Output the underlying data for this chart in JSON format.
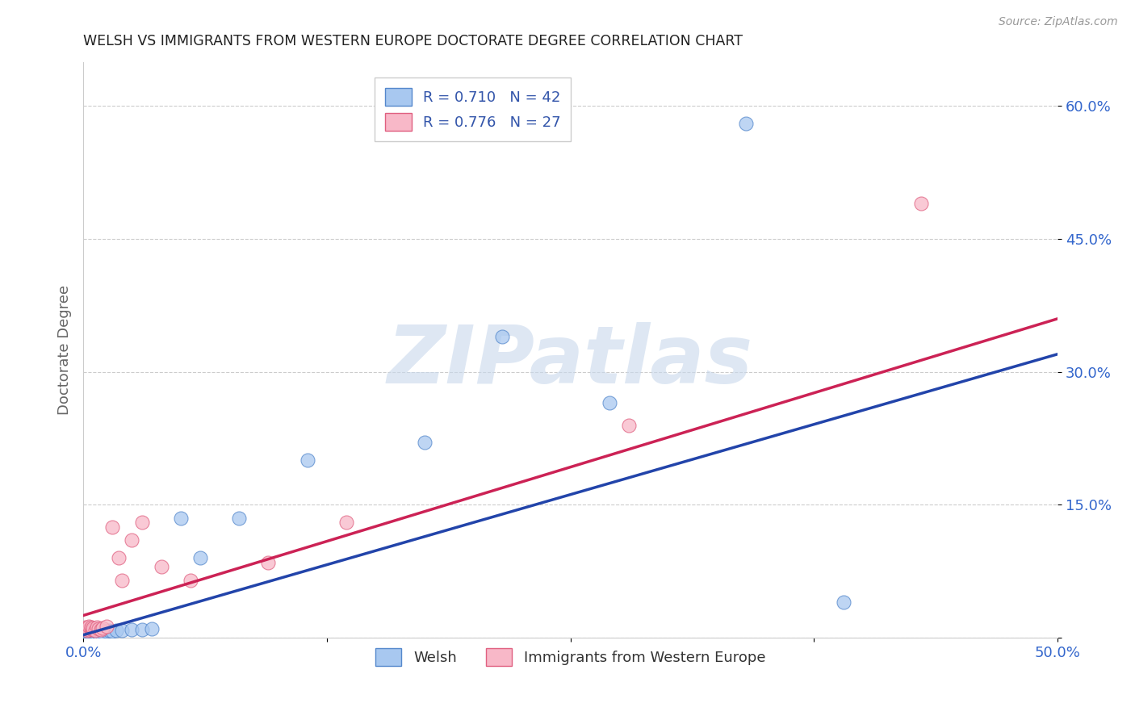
{
  "title": "WELSH VS IMMIGRANTS FROM WESTERN EUROPE DOCTORATE DEGREE CORRELATION CHART",
  "source": "Source: ZipAtlas.com",
  "ylabel": "Doctorate Degree",
  "xlim": [
    0.0,
    0.5
  ],
  "ylim": [
    0.0,
    0.65
  ],
  "xticks": [
    0.0,
    0.125,
    0.25,
    0.375,
    0.5
  ],
  "xticklabels": [
    "0.0%",
    "",
    "",
    "",
    "50.0%"
  ],
  "yticks": [
    0.0,
    0.15,
    0.3,
    0.45,
    0.6
  ],
  "yticklabels": [
    "",
    "15.0%",
    "30.0%",
    "45.0%",
    "60.0%"
  ],
  "welsh_color": "#A8C8F0",
  "welsh_edge": "#5588CC",
  "immigrant_color": "#F8B8C8",
  "immigrant_edge": "#E06080",
  "welsh_line_color": "#2244AA",
  "immigrant_line_color": "#CC2255",
  "legend_welsh_label": "R = 0.710   N = 42",
  "legend_immigrant_label": "R = 0.776   N = 27",
  "watermark": "ZIPatlas",
  "bottom_legend_welsh": "Welsh",
  "bottom_legend_immigrant": "Immigrants from Western Europe",
  "welsh_x": [
    0.001,
    0.001,
    0.001,
    0.002,
    0.002,
    0.002,
    0.002,
    0.003,
    0.003,
    0.003,
    0.003,
    0.004,
    0.004,
    0.004,
    0.005,
    0.005,
    0.005,
    0.006,
    0.006,
    0.006,
    0.007,
    0.007,
    0.008,
    0.009,
    0.01,
    0.012,
    0.013,
    0.015,
    0.017,
    0.02,
    0.025,
    0.03,
    0.035,
    0.05,
    0.06,
    0.08,
    0.115,
    0.175,
    0.215,
    0.27,
    0.34,
    0.39
  ],
  "welsh_y": [
    0.003,
    0.004,
    0.005,
    0.002,
    0.003,
    0.004,
    0.005,
    0.002,
    0.004,
    0.005,
    0.006,
    0.003,
    0.004,
    0.006,
    0.003,
    0.004,
    0.005,
    0.003,
    0.004,
    0.005,
    0.004,
    0.006,
    0.005,
    0.005,
    0.006,
    0.007,
    0.008,
    0.007,
    0.008,
    0.008,
    0.009,
    0.009,
    0.01,
    0.135,
    0.09,
    0.135,
    0.2,
    0.22,
    0.34,
    0.265,
    0.58,
    0.04
  ],
  "immigrant_x": [
    0.001,
    0.001,
    0.002,
    0.002,
    0.003,
    0.003,
    0.004,
    0.004,
    0.005,
    0.005,
    0.006,
    0.007,
    0.008,
    0.009,
    0.01,
    0.012,
    0.015,
    0.018,
    0.02,
    0.025,
    0.03,
    0.04,
    0.055,
    0.095,
    0.135,
    0.28,
    0.43
  ],
  "immigrant_y": [
    0.01,
    0.012,
    0.008,
    0.011,
    0.009,
    0.013,
    0.01,
    0.012,
    0.009,
    0.011,
    0.008,
    0.012,
    0.01,
    0.009,
    0.011,
    0.013,
    0.125,
    0.09,
    0.065,
    0.11,
    0.13,
    0.08,
    0.065,
    0.085,
    0.13,
    0.24,
    0.49
  ],
  "grid_color": "#CCCCCC",
  "bg_color": "#FFFFFF"
}
